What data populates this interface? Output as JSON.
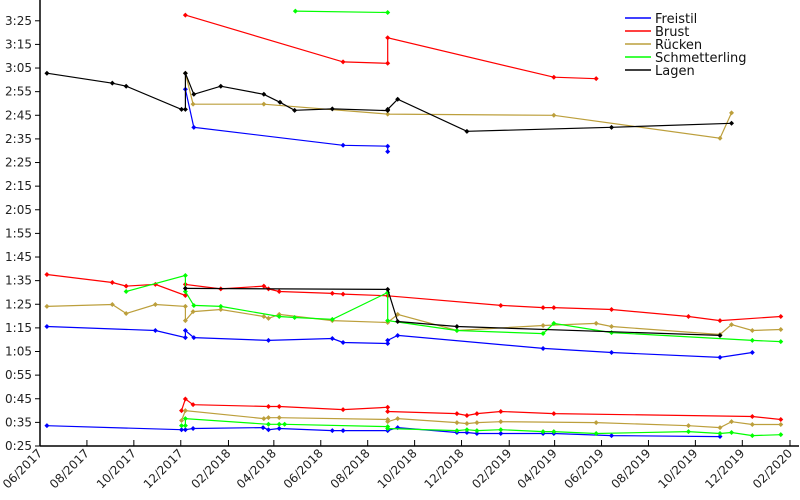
{
  "chart_data": {
    "type": "line",
    "title": "",
    "xlabel": "",
    "ylabel": "",
    "xlim": [
      "2017-06-01",
      "2020-02-01"
    ],
    "ylim_seconds": [
      25,
      213.8
    ],
    "grid": false,
    "legend_position": "top-right",
    "x_ticks": [
      {
        "date": "2017-06-01",
        "label": "06/2017"
      },
      {
        "date": "2017-08-01",
        "label": "08/2017"
      },
      {
        "date": "2017-10-01",
        "label": "10/2017"
      },
      {
        "date": "2017-12-01",
        "label": "12/2017"
      },
      {
        "date": "2018-02-01",
        "label": "02/2018"
      },
      {
        "date": "2018-04-01",
        "label": "04/2018"
      },
      {
        "date": "2018-06-01",
        "label": "06/2018"
      },
      {
        "date": "2018-08-01",
        "label": "08/2018"
      },
      {
        "date": "2018-10-01",
        "label": "10/2018"
      },
      {
        "date": "2018-12-01",
        "label": "12/2018"
      },
      {
        "date": "2019-02-01",
        "label": "02/2019"
      },
      {
        "date": "2019-04-01",
        "label": "04/2019"
      },
      {
        "date": "2019-06-01",
        "label": "06/2019"
      },
      {
        "date": "2019-08-01",
        "label": "08/2019"
      },
      {
        "date": "2019-10-01",
        "label": "10/2019"
      },
      {
        "date": "2019-12-01",
        "label": "12/2019"
      },
      {
        "date": "2020-02-01",
        "label": "02/2020"
      }
    ],
    "y_ticks": [
      {
        "seconds": 25,
        "label": "0:25"
      },
      {
        "seconds": 35,
        "label": "0:35"
      },
      {
        "seconds": 45,
        "label": "0:45"
      },
      {
        "seconds": 55,
        "label": "0:55"
      },
      {
        "seconds": 65,
        "label": "1:05"
      },
      {
        "seconds": 75,
        "label": "1:15"
      },
      {
        "seconds": 85,
        "label": "1:25"
      },
      {
        "seconds": 95,
        "label": "1:35"
      },
      {
        "seconds": 105,
        "label": "1:45"
      },
      {
        "seconds": 115,
        "label": "1:55"
      },
      {
        "seconds": 125,
        "label": "2:05"
      },
      {
        "seconds": 135,
        "label": "2:15"
      },
      {
        "seconds": 145,
        "label": "2:25"
      },
      {
        "seconds": 155,
        "label": "2:35"
      },
      {
        "seconds": 165,
        "label": "2:45"
      },
      {
        "seconds": 175,
        "label": "2:55"
      },
      {
        "seconds": 185,
        "label": "3:05"
      },
      {
        "seconds": 195,
        "label": "3:15"
      },
      {
        "seconds": 205,
        "label": "3:25"
      }
    ],
    "series": [
      {
        "name": "Freistil",
        "color": "#0000ff",
        "segments": [
          [
            [
              "2017-12-07",
              176.0
            ],
            [
              "2017-12-18",
              159.9
            ],
            [
              "2018-06-30",
              152.3
            ],
            [
              "2018-08-27",
              151.9
            ],
            [
              "2018-08-27",
              149.6
            ]
          ],
          [
            [
              "2017-06-10",
              75.6
            ],
            [
              "2017-10-29",
              73.9
            ],
            [
              "2017-12-07",
              70.9
            ],
            [
              "2017-12-07",
              73.9
            ],
            [
              "2017-12-18",
              70.9
            ],
            [
              "2018-03-25",
              69.7
            ],
            [
              "2018-06-16",
              70.5
            ],
            [
              "2018-06-30",
              68.8
            ],
            [
              "2018-08-27",
              68.4
            ],
            [
              "2018-08-27",
              69.7
            ],
            [
              "2018-09-09",
              71.8
            ],
            [
              "2019-03-17",
              66.3
            ],
            [
              "2019-06-14",
              64.6
            ],
            [
              "2019-11-02",
              62.5
            ],
            [
              "2019-12-14",
              64.6
            ]
          ],
          [
            [
              "2017-06-10",
              33.6
            ],
            [
              "2017-12-02",
              31.9
            ],
            [
              "2017-12-07",
              31.9
            ],
            [
              "2017-12-17",
              32.4
            ],
            [
              "2018-03-18",
              32.8
            ],
            [
              "2018-03-25",
              31.9
            ],
            [
              "2018-04-08",
              32.4
            ],
            [
              "2018-06-16",
              31.5
            ],
            [
              "2018-06-30",
              31.5
            ],
            [
              "2018-08-27",
              31.5
            ],
            [
              "2018-09-09",
              32.8
            ],
            [
              "2018-11-25",
              30.7
            ],
            [
              "2018-12-08",
              30.7
            ],
            [
              "2018-12-21",
              30.3
            ],
            [
              "2019-01-21",
              30.3
            ],
            [
              "2019-03-17",
              30.3
            ],
            [
              "2019-03-31",
              30.3
            ],
            [
              "2019-06-14",
              29.4
            ],
            [
              "2019-11-02",
              29.0
            ]
          ]
        ]
      },
      {
        "name": "Brust",
        "color": "#ff0000",
        "segments": [
          [
            [
              "2017-12-07",
              207.4
            ],
            [
              "2018-06-30",
              187.6
            ],
            [
              "2018-08-27",
              187.0
            ],
            [
              "2018-08-27",
              197.8
            ],
            [
              "2019-03-31",
              181.1
            ],
            [
              "2019-05-25",
              180.5
            ]
          ],
          [
            [
              "2017-06-10",
              97.6
            ],
            [
              "2017-09-03",
              94.2
            ],
            [
              "2017-09-21",
              92.7
            ],
            [
              "2017-10-29",
              93.4
            ],
            [
              "2017-12-07",
              88.7
            ],
            [
              "2017-12-07",
              93.4
            ],
            [
              "2018-01-22",
              91.5
            ],
            [
              "2018-03-19",
              92.7
            ],
            [
              "2018-03-25",
              91.5
            ],
            [
              "2018-04-08",
              90.4
            ],
            [
              "2018-06-16",
              89.6
            ],
            [
              "2018-06-30",
              89.3
            ],
            [
              "2018-08-27",
              88.6
            ],
            [
              "2019-01-21",
              84.5
            ],
            [
              "2019-03-17",
              83.6
            ],
            [
              "2019-03-31",
              83.6
            ],
            [
              "2019-06-14",
              82.8
            ],
            [
              "2019-09-22",
              79.8
            ],
            [
              "2019-11-02",
              78.1
            ],
            [
              "2020-01-20",
              79.8
            ]
          ],
          [
            [
              "2017-12-02",
              40.0
            ],
            [
              "2017-12-07",
              44.9
            ],
            [
              "2017-12-17",
              42.5
            ],
            [
              "2018-03-25",
              41.7
            ],
            [
              "2018-04-08",
              41.7
            ],
            [
              "2018-06-30",
              40.4
            ],
            [
              "2018-08-27",
              41.4
            ],
            [
              "2018-08-27",
              39.6
            ],
            [
              "2018-11-25",
              38.7
            ],
            [
              "2018-12-08",
              37.9
            ],
            [
              "2018-12-21",
              38.7
            ],
            [
              "2019-01-21",
              39.6
            ],
            [
              "2019-03-31",
              38.7
            ],
            [
              "2019-12-14",
              37.5
            ],
            [
              "2020-01-20",
              36.2
            ]
          ]
        ]
      },
      {
        "name": "Rücken",
        "color": "#bc9f3c",
        "segments": [
          [
            [
              "2017-12-07",
              182.8
            ],
            [
              "2017-12-17",
              169.7
            ],
            [
              "2018-03-19",
              169.7
            ],
            [
              "2018-08-27",
              165.5
            ],
            [
              "2019-03-31",
              165.0
            ],
            [
              "2019-11-02",
              155.3
            ],
            [
              "2019-11-17",
              166.0
            ]
          ],
          [
            [
              "2017-06-10",
              84.1
            ],
            [
              "2017-09-03",
              84.9
            ],
            [
              "2017-09-21",
              81.1
            ],
            [
              "2017-10-29",
              84.9
            ],
            [
              "2017-12-07",
              84.1
            ],
            [
              "2017-12-07",
              78.1
            ],
            [
              "2017-12-17",
              81.9
            ],
            [
              "2018-01-22",
              82.8
            ],
            [
              "2018-03-19",
              79.8
            ],
            [
              "2018-03-25",
              79.0
            ],
            [
              "2018-04-08",
              80.7
            ],
            [
              "2018-06-16",
              78.1
            ],
            [
              "2018-08-27",
              77.3
            ],
            [
              "2018-09-09",
              80.7
            ],
            [
              "2018-11-25",
              73.9
            ],
            [
              "2019-03-17",
              76.0
            ],
            [
              "2019-05-25",
              76.9
            ],
            [
              "2019-06-14",
              75.6
            ],
            [
              "2019-11-02",
              72.2
            ],
            [
              "2019-11-17",
              76.4
            ],
            [
              "2019-12-14",
              73.9
            ],
            [
              "2020-01-20",
              74.3
            ]
          ],
          [
            [
              "2017-12-02",
              35.8
            ],
            [
              "2017-12-07",
              40.0
            ],
            [
              "2018-03-19",
              36.6
            ],
            [
              "2018-03-25",
              37.0
            ],
            [
              "2018-04-08",
              37.0
            ],
            [
              "2018-08-27",
              36.2
            ],
            [
              "2018-08-27",
              35.3
            ],
            [
              "2018-09-09",
              36.6
            ],
            [
              "2018-11-25",
              34.9
            ],
            [
              "2018-12-08",
              34.5
            ],
            [
              "2018-12-21",
              34.9
            ],
            [
              "2019-01-21",
              35.3
            ],
            [
              "2019-05-25",
              34.9
            ],
            [
              "2019-09-22",
              33.6
            ],
            [
              "2019-11-02",
              32.8
            ],
            [
              "2019-11-17",
              35.3
            ],
            [
              "2019-12-14",
              34.1
            ],
            [
              "2020-01-20",
              34.1
            ]
          ]
        ]
      },
      {
        "name": "Schmetterling",
        "color": "#00ff00",
        "segments": [
          [
            [
              "2018-04-29",
              209.1
            ],
            [
              "2018-08-27",
              208.5
            ]
          ],
          [
            [
              "2017-09-21",
              90.4
            ],
            [
              "2017-12-07",
              97.2
            ],
            [
              "2017-12-07",
              90.4
            ],
            [
              "2017-12-18",
              84.5
            ],
            [
              "2018-01-22",
              84.1
            ],
            [
              "2018-04-08",
              79.8
            ],
            [
              "2018-04-28",
              79.4
            ],
            [
              "2018-06-16",
              78.6
            ],
            [
              "2018-08-27",
              90.0
            ],
            [
              "2018-08-27",
              78.1
            ],
            [
              "2018-11-25",
              73.9
            ],
            [
              "2019-03-17",
              72.6
            ],
            [
              "2019-03-31",
              76.9
            ],
            [
              "2019-06-14",
              73.0
            ],
            [
              "2019-12-14",
              69.7
            ],
            [
              "2020-01-20",
              69.2
            ]
          ],
          [
            [
              "2017-12-02",
              33.6
            ],
            [
              "2017-12-07",
              33.6
            ],
            [
              "2017-12-07",
              36.6
            ],
            [
              "2018-03-25",
              34.2
            ],
            [
              "2018-04-08",
              34.2
            ],
            [
              "2018-04-15",
              34.2
            ],
            [
              "2018-08-27",
              33.2
            ],
            [
              "2018-08-27",
              32.4
            ],
            [
              "2018-11-25",
              31.5
            ],
            [
              "2018-12-08",
              31.9
            ],
            [
              "2018-12-21",
              31.5
            ],
            [
              "2019-01-21",
              31.9
            ],
            [
              "2019-03-17",
              31.1
            ],
            [
              "2019-03-31",
              31.1
            ],
            [
              "2019-05-25",
              30.3
            ],
            [
              "2019-09-22",
              31.1
            ],
            [
              "2019-11-02",
              30.3
            ],
            [
              "2019-11-17",
              30.7
            ],
            [
              "2019-12-14",
              29.4
            ],
            [
              "2020-01-20",
              29.8
            ]
          ]
        ]
      },
      {
        "name": "Lagen",
        "color": "#000000",
        "segments": [
          [
            [
              "2017-06-10",
              182.8
            ],
            [
              "2017-09-03",
              178.6
            ],
            [
              "2017-09-21",
              177.3
            ],
            [
              "2017-12-02",
              167.5
            ],
            [
              "2017-12-07",
              167.5
            ],
            [
              "2017-12-07",
              182.8
            ],
            [
              "2017-12-18",
              173.9
            ],
            [
              "2018-01-22",
              177.3
            ],
            [
              "2018-03-19",
              173.9
            ],
            [
              "2018-04-09",
              170.5
            ],
            [
              "2018-04-28",
              167.1
            ],
            [
              "2018-06-16",
              167.7
            ],
            [
              "2018-08-27",
              167.0
            ],
            [
              "2018-08-27",
              167.5
            ],
            [
              "2018-09-09",
              171.8
            ],
            [
              "2018-12-08",
              158.2
            ],
            [
              "2019-06-14",
              159.9
            ],
            [
              "2019-11-17",
              161.6
            ]
          ],
          [
            [
              "2017-12-07",
              91.7
            ],
            [
              "2018-08-27",
              91.3
            ],
            [
              "2018-09-09",
              77.7
            ],
            [
              "2018-11-25",
              75.6
            ],
            [
              "2019-11-02",
              71.8
            ]
          ]
        ]
      }
    ]
  }
}
